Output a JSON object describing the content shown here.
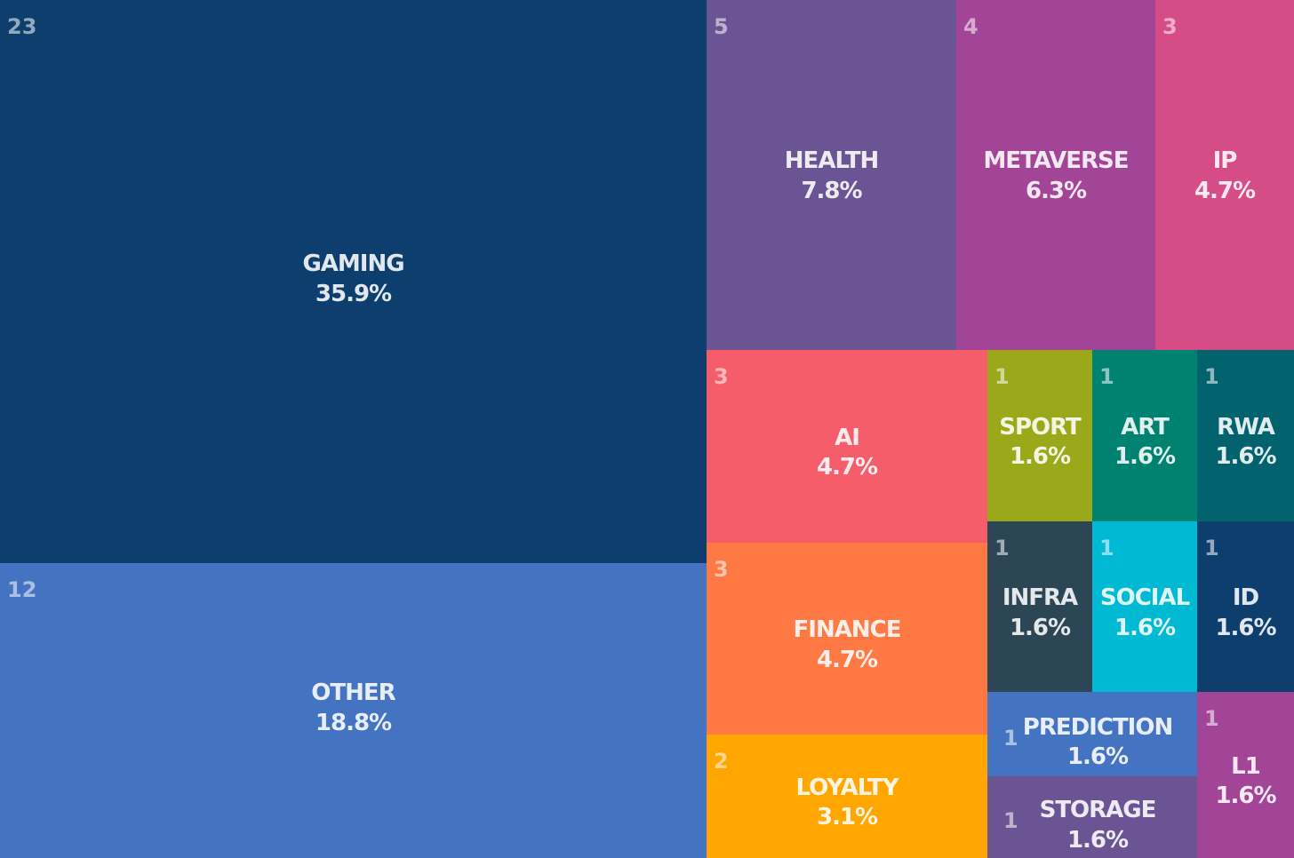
{
  "chart_data": {
    "type": "treemap",
    "tiles": [
      {
        "key": "gaming",
        "name": "GAMING",
        "count": 23,
        "percent": "35.9%",
        "color": "#0d3e6e"
      },
      {
        "key": "other",
        "name": "OTHER",
        "count": 12,
        "percent": "18.8%",
        "color": "#4473c1"
      },
      {
        "key": "health",
        "name": "HEALTH",
        "count": 5,
        "percent": "7.8%",
        "color": "#6a5493"
      },
      {
        "key": "metaverse",
        "name": "METAVERSE",
        "count": 4,
        "percent": "6.3%",
        "color": "#a24597"
      },
      {
        "key": "ip",
        "name": "IP",
        "count": 3,
        "percent": "4.7%",
        "color": "#d54c86"
      },
      {
        "key": "ai",
        "name": "AI",
        "count": 3,
        "percent": "4.7%",
        "color": "#f65d6b"
      },
      {
        "key": "finance",
        "name": "FINANCE",
        "count": 3,
        "percent": "4.7%",
        "color": "#fe7944"
      },
      {
        "key": "loyalty",
        "name": "LOYALTY",
        "count": 2,
        "percent": "3.1%",
        "color": "#ffa600"
      },
      {
        "key": "sport",
        "name": "SPORT",
        "count": 1,
        "percent": "1.6%",
        "color": "#9aa819"
      },
      {
        "key": "art",
        "name": "ART",
        "count": 1,
        "percent": "1.6%",
        "color": "#008270"
      },
      {
        "key": "rwa",
        "name": "RWA",
        "count": 1,
        "percent": "1.6%",
        "color": "#02626e"
      },
      {
        "key": "infra",
        "name": "INFRA",
        "count": 1,
        "percent": "1.6%",
        "color": "#2d4655"
      },
      {
        "key": "social",
        "name": "SOCIAL",
        "count": 1,
        "percent": "1.6%",
        "color": "#00bad4"
      },
      {
        "key": "id",
        "name": "ID",
        "count": 1,
        "percent": "1.6%",
        "color": "#0d3e6e"
      },
      {
        "key": "prediction",
        "name": "PREDICTION",
        "count": 1,
        "percent": "1.6%",
        "color": "#4473c1"
      },
      {
        "key": "storage",
        "name": "STORAGE",
        "count": 1,
        "percent": "1.6%",
        "color": "#6a5493"
      },
      {
        "key": "l1",
        "name": "L1",
        "count": 1,
        "percent": "1.6%",
        "color": "#a24597"
      }
    ]
  }
}
